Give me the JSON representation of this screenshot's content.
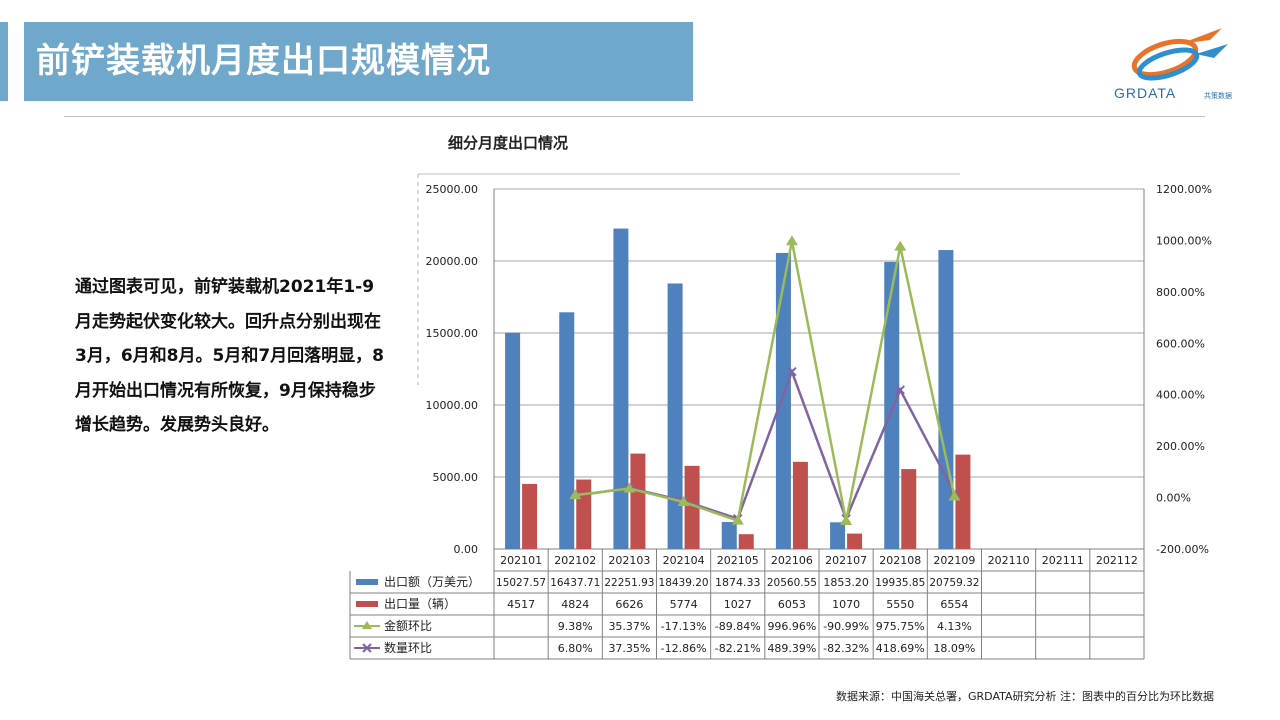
{
  "page": {
    "title": "前铲装载机月度出口规模情况",
    "description": "通过图表可见，前铲装载机2021年1-9月走势起伏变化较大。回升点分别出现在3月，6月和8月。5月和7月回落明显，8月开始出口情况有所恢复，9月保持稳步增长趋势。发展势头良好。",
    "footnote": "数据来源：中国海关总署，GRDATA研究分析  注：图表中的百分比为环比数据",
    "logo_text": "GRDATA",
    "logo_subtext": "共策数据"
  },
  "colors": {
    "title_bg": "#6fa8cb",
    "amount": "#4f81bd",
    "quantity": "#c0504d",
    "amount_mom": "#9bbb59",
    "quantity_mom": "#8064a2"
  },
  "chart_data": {
    "type": "bar",
    "title": "细分月度出口情况",
    "categories": [
      "202101",
      "202102",
      "202103",
      "202104",
      "202105",
      "202106",
      "202107",
      "202108",
      "202109",
      "202110",
      "202111",
      "202112"
    ],
    "ylim_left": [
      0,
      25000
    ],
    "yticks_left": [
      "25000.00",
      "20000.00",
      "15000.00",
      "10000.00",
      "5000.00",
      "0.00"
    ],
    "ylim_right": [
      -200,
      1200
    ],
    "yticks_right": [
      "1200.00%",
      "1000.00%",
      "800.00%",
      "600.00%",
      "400.00%",
      "200.00%",
      "0.00%",
      "-200.00%"
    ],
    "grid": true,
    "series": [
      {
        "name": "出口额（万美元）",
        "type": "bar",
        "axis": "left",
        "values": [
          15027.57,
          16437.71,
          22251.93,
          18439.2,
          1874.33,
          20560.55,
          1853.2,
          19935.85,
          20759.32,
          null,
          null,
          null
        ],
        "labels": [
          "15027.57",
          "16437.71",
          "22251.93",
          "18439.20",
          "1874.33",
          "20560.55",
          "1853.20",
          "19935.85",
          "20759.32",
          "",
          "",
          ""
        ]
      },
      {
        "name": "出口量（辆）",
        "type": "bar",
        "axis": "left",
        "values": [
          4517,
          4824,
          6626,
          5774,
          1027,
          6053,
          1070,
          5550,
          6554,
          null,
          null,
          null
        ],
        "labels": [
          "4517",
          "4824",
          "6626",
          "5774",
          "1027",
          "6053",
          "1070",
          "5550",
          "6554",
          "",
          "",
          ""
        ]
      },
      {
        "name": "金额环比",
        "type": "line",
        "axis": "right",
        "marker": "triangle",
        "values": [
          null,
          9.38,
          35.37,
          -17.13,
          -89.84,
          996.96,
          -90.99,
          975.75,
          4.13,
          null,
          null,
          null
        ],
        "labels": [
          "",
          "9.38%",
          "35.37%",
          "-17.13%",
          "-89.84%",
          "996.96%",
          "-90.99%",
          "975.75%",
          "4.13%",
          "",
          "",
          ""
        ]
      },
      {
        "name": "数量环比",
        "type": "line",
        "axis": "right",
        "marker": "x",
        "values": [
          null,
          6.8,
          37.35,
          -12.86,
          -82.21,
          489.39,
          -82.32,
          418.69,
          18.09,
          null,
          null,
          null
        ],
        "labels": [
          "",
          "6.80%",
          "37.35%",
          "-12.86%",
          "-82.21%",
          "489.39%",
          "-82.32%",
          "418.69%",
          "18.09%",
          "",
          "",
          ""
        ]
      }
    ]
  }
}
